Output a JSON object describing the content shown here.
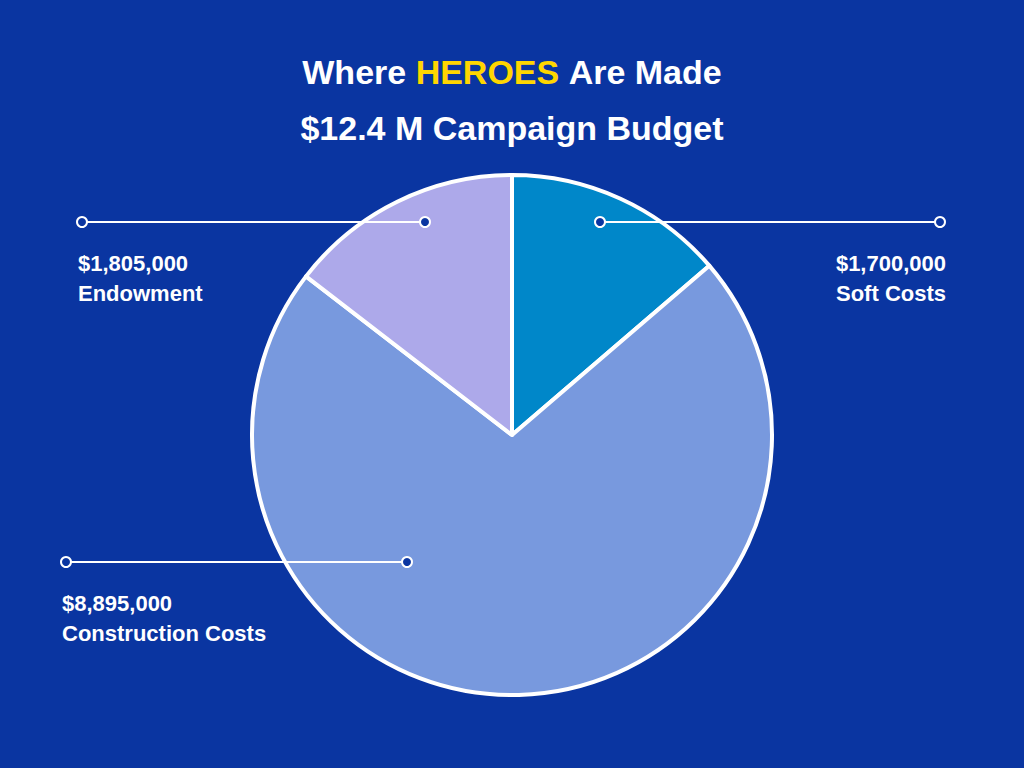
{
  "chart_data": {
    "type": "pie",
    "title": "Where HEROES Are Made",
    "subtitle": "$12.4 M Campaign Budget",
    "categories": [
      "Soft Costs",
      "Construction Costs",
      "Endowment"
    ],
    "values": [
      1700000,
      8895000,
      1805000
    ],
    "value_labels": [
      "$1,700,000",
      "$8,895,000",
      "$1,805,000"
    ],
    "colors": [
      "#0087c9",
      "#7899de",
      "#ada9ea"
    ],
    "data_labels": true
  }
}
